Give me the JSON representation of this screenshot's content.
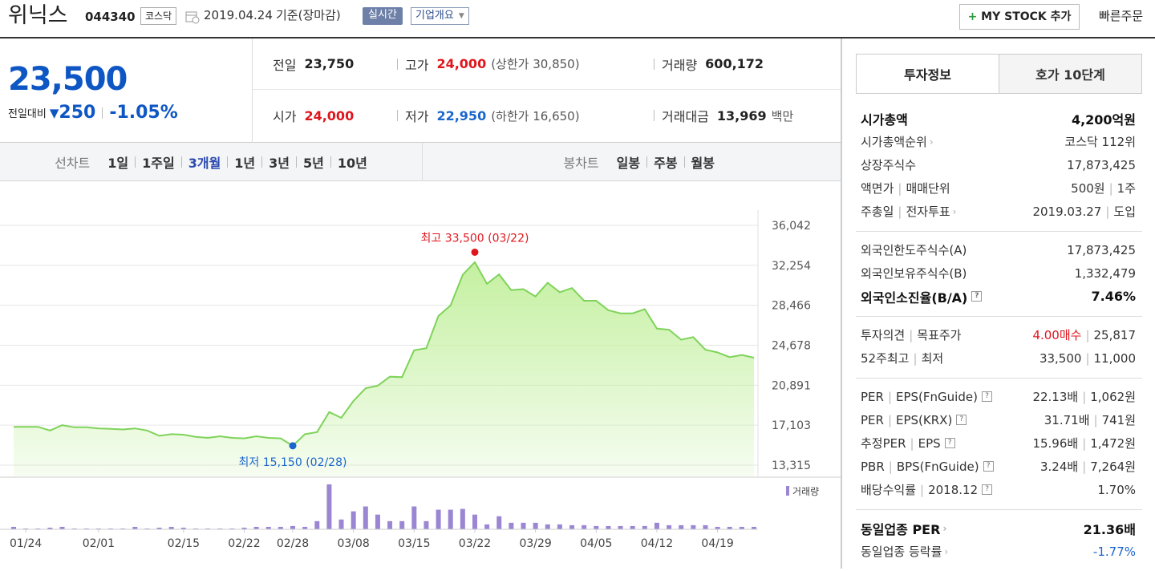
{
  "header": {
    "name": "위닉스",
    "code": "044340",
    "market": "코스닥",
    "date": "2019.04.24",
    "basis": "기준(장마감)",
    "realtime": "실시간",
    "company": "기업개요",
    "mystock": "MY STOCK 추가",
    "quick_order": "빠른주문"
  },
  "price": {
    "current": "23,500",
    "change_label": "전일대비",
    "change": "250",
    "change_rate": "-1.05%"
  },
  "summary": [
    [
      {
        "label": "전일",
        "value": "23,750"
      },
      {
        "label": "고가",
        "value": "24,000",
        "color": "#e0161d",
        "extra": "(상한가 30,850)"
      },
      {
        "label": "거래량",
        "value": "600,172"
      }
    ],
    [
      {
        "label": "시가",
        "value": "24,000",
        "color": "#e0161d"
      },
      {
        "label": "저가",
        "value": "22,950",
        "color": "#1a66cc",
        "extra": "(하한가 16,650)"
      },
      {
        "label": "거래대금",
        "value": "13,969",
        "extra": "백만"
      }
    ]
  ],
  "chart_tabs": {
    "line_label": "선차트",
    "line": [
      "1일",
      "1주일",
      "3개월",
      "1년",
      "3년",
      "5년",
      "10년"
    ],
    "selected": "3개월",
    "candle_label": "봉차트",
    "candle": [
      "일봉",
      "주봉",
      "월봉"
    ]
  },
  "chart_data": [
    {
      "type": "line",
      "color": "#7fd35a",
      "fill": "#c4f0a0",
      "values": [
        16950,
        16950,
        16950,
        16600,
        17100,
        16900,
        16900,
        16800,
        16750,
        16700,
        16800,
        16600,
        16100,
        16250,
        16200,
        16000,
        15900,
        16050,
        15900,
        15850,
        16050,
        15900,
        15850,
        15150,
        16250,
        16450,
        18350,
        17800,
        19400,
        20600,
        20850,
        21700,
        21650,
        24200,
        24400,
        27450,
        28450,
        31350,
        32550,
        30500,
        31400,
        29900,
        30000,
        29300,
        30600,
        29700,
        30100,
        28900,
        28900,
        28000,
        27700,
        27700,
        28100,
        26250,
        26150,
        25200,
        25450,
        24250,
        24000,
        23550,
        23750,
        23500
      ],
      "ylim": [
        13315,
        36042
      ],
      "yticks": [
        {
          "value": 36042,
          "label": "36,042"
        },
        {
          "value": 32254,
          "label": "32,254"
        },
        {
          "value": 28466,
          "label": "28,466"
        },
        {
          "value": 24678,
          "label": "24,678"
        },
        {
          "value": 20891,
          "label": "20,891"
        },
        {
          "value": 17103,
          "label": "17,103"
        },
        {
          "value": 13315,
          "label": "13,315"
        }
      ],
      "grid": true,
      "annotations": [
        {
          "label": "최고 33,500 (03/22)",
          "value": 33500,
          "category": "03/22",
          "color": "#e0161d"
        },
        {
          "label": "최저 15,150 (02/28)",
          "value": 15150,
          "category": "02/28",
          "color": "#1a66cc"
        }
      ]
    },
    {
      "type": "bar",
      "categories": [
        null,
        "01/24",
        null,
        null,
        null,
        null,
        null,
        "02/01",
        null,
        null,
        null,
        null,
        null,
        null,
        "02/15",
        null,
        null,
        null,
        null,
        "02/22",
        null,
        null,
        null,
        "02/28",
        null,
        null,
        null,
        null,
        "03/08",
        null,
        null,
        null,
        null,
        "03/15",
        null,
        null,
        null,
        null,
        "03/22",
        null,
        null,
        null,
        null,
        "03/29",
        null,
        null,
        null,
        null,
        "04/05",
        null,
        null,
        null,
        null,
        "04/12",
        null,
        null,
        null,
        null,
        "04/19",
        null,
        null,
        null
      ],
      "series": [
        {
          "name": "거래량",
          "color": "#9b86d4",
          "values": [
            600000,
            200000,
            200000,
            400000,
            600000,
            200000,
            200000,
            200000,
            200000,
            200000,
            600000,
            200000,
            400000,
            600000,
            400000,
            200000,
            200000,
            200000,
            200000,
            400000,
            600000,
            600000,
            600000,
            800000,
            600000,
            2000000,
            11000000,
            2400000,
            4400000,
            5600000,
            3600000,
            2000000,
            2000000,
            5600000,
            2000000,
            4800000,
            4800000,
            5000000,
            3600000,
            1200000,
            3200000,
            1600000,
            1600000,
            1600000,
            1200000,
            1200000,
            1000000,
            1000000,
            800000,
            800000,
            800000,
            800000,
            800000,
            1600000,
            1000000,
            1000000,
            1000000,
            1000000,
            600000,
            600000,
            600000,
            600172
          ]
        }
      ]
    }
  ],
  "invest": {
    "tabs": [
      "투자정보",
      "호가 10단계"
    ],
    "groups": [
      [
        {
          "labels": [
            "시가총액"
          ],
          "values": [
            "4,200억원"
          ],
          "bold": true
        },
        {
          "labels": [
            "시가총액순위"
          ],
          "values": [
            "코스닥 112위"
          ],
          "arrow": true
        },
        {
          "labels": [
            "상장주식수"
          ],
          "values": [
            "17,873,425"
          ]
        },
        {
          "labels": [
            "액면가",
            "매매단위"
          ],
          "values": [
            "500원",
            "1주"
          ]
        },
        {
          "labels": [
            "주총일",
            "전자투표"
          ],
          "values": [
            "2019.03.27",
            "도입"
          ],
          "arrow": true
        }
      ],
      [
        {
          "labels": [
            "외국인한도주식수(A)"
          ],
          "values": [
            "17,873,425"
          ]
        },
        {
          "labels": [
            "외국인보유주식수(B)"
          ],
          "values": [
            "1,332,479"
          ]
        },
        {
          "labels": [
            "외국인소진율(B/A)"
          ],
          "values": [
            "7.46%"
          ],
          "bold": true,
          "help": true
        }
      ],
      [
        {
          "labels": [
            "투자의견",
            "목표주가"
          ],
          "values": [
            "4.00매수",
            "25,817"
          ],
          "color": "#e0161d"
        },
        {
          "labels": [
            "52주최고",
            "최저"
          ],
          "values": [
            "33,500",
            "11,000"
          ]
        }
      ],
      [
        {
          "labels": [
            "PER",
            "EPS(FnGuide)"
          ],
          "values": [
            "22.13배",
            "1,062원"
          ],
          "help": true
        },
        {
          "labels": [
            "PER",
            "EPS(KRX)"
          ],
          "values": [
            "31.71배",
            "741원"
          ],
          "help": true
        },
        {
          "labels": [
            "추정PER",
            "EPS"
          ],
          "values": [
            "15.96배",
            "1,472원"
          ],
          "help": true
        },
        {
          "labels": [
            "PBR",
            "BPS(FnGuide)"
          ],
          "values": [
            "3.24배",
            "7,264원"
          ],
          "help": true
        },
        {
          "labels": [
            "배당수익률",
            "2018.12"
          ],
          "values": [
            "1.70%"
          ],
          "help": true
        }
      ],
      [
        {
          "labels": [
            "동일업종 PER"
          ],
          "values": [
            "21.36배"
          ],
          "bold": true,
          "arrow": true
        },
        {
          "labels": [
            "동일업종 등락률"
          ],
          "values": [
            "-1.77%"
          ],
          "arrow": true,
          "color": "#1a66cc"
        }
      ]
    ]
  }
}
